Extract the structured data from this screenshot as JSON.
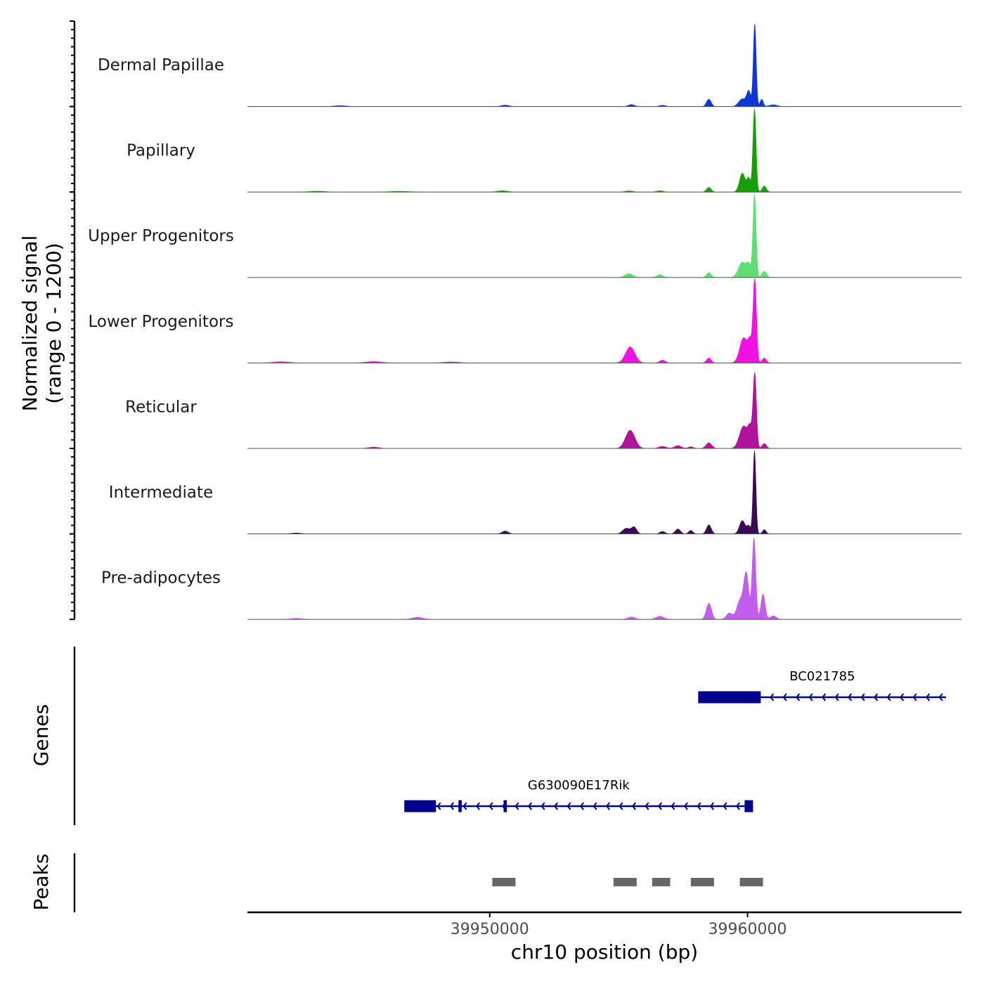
{
  "chart_data": {
    "type": "area",
    "title": "",
    "xlabel": "chr10 position (bp)",
    "ylabel_line1": "Normalized signal",
    "ylabel_line2": "(range 0 - 1200)",
    "ylim": [
      0,
      1200
    ],
    "xlim": [
      39940600,
      39968300
    ],
    "x_ticks": [
      39950000,
      39960000
    ],
    "x_tick_labels": [
      "39950000",
      "39960000"
    ],
    "tracks": [
      {
        "name": "Dermal Papillae",
        "color": "#0e36d9",
        "peaks": [
          {
            "center": 39944200,
            "sigma": 250,
            "height": 12
          },
          {
            "center": 39950600,
            "sigma": 150,
            "height": 20
          },
          {
            "center": 39955500,
            "sigma": 120,
            "height": 28
          },
          {
            "center": 39956700,
            "sigma": 120,
            "height": 18
          },
          {
            "center": 39958500,
            "sigma": 90,
            "height": 105
          },
          {
            "center": 39959800,
            "sigma": 140,
            "height": 110
          },
          {
            "center": 39960050,
            "sigma": 80,
            "height": 210
          },
          {
            "center": 39960280,
            "sigma": 55,
            "height": 1180
          },
          {
            "center": 39960550,
            "sigma": 60,
            "height": 105
          },
          {
            "center": 39961000,
            "sigma": 150,
            "height": 25
          }
        ]
      },
      {
        "name": "Papillary",
        "color": "#169f0a",
        "peaks": [
          {
            "center": 39943300,
            "sigma": 300,
            "height": 12
          },
          {
            "center": 39946500,
            "sigma": 400,
            "height": 10
          },
          {
            "center": 39950500,
            "sigma": 200,
            "height": 18
          },
          {
            "center": 39955400,
            "sigma": 150,
            "height": 16
          },
          {
            "center": 39956600,
            "sigma": 130,
            "height": 18
          },
          {
            "center": 39958500,
            "sigma": 90,
            "height": 65
          },
          {
            "center": 39959800,
            "sigma": 110,
            "height": 270
          },
          {
            "center": 39960050,
            "sigma": 70,
            "height": 190
          },
          {
            "center": 39960270,
            "sigma": 60,
            "height": 1190
          },
          {
            "center": 39960650,
            "sigma": 80,
            "height": 85
          }
        ]
      },
      {
        "name": "Upper Progenitors",
        "color": "#5fdf73",
        "peaks": [
          {
            "center": 39955400,
            "sigma": 150,
            "height": 55
          },
          {
            "center": 39956600,
            "sigma": 120,
            "height": 40
          },
          {
            "center": 39958500,
            "sigma": 90,
            "height": 70
          },
          {
            "center": 39959800,
            "sigma": 150,
            "height": 220
          },
          {
            "center": 39960050,
            "sigma": 80,
            "height": 160
          },
          {
            "center": 39960270,
            "sigma": 60,
            "height": 1190
          },
          {
            "center": 39960650,
            "sigma": 90,
            "height": 90
          }
        ]
      },
      {
        "name": "Lower Progenitors",
        "color": "#f012e5",
        "peaks": [
          {
            "center": 39941900,
            "sigma": 300,
            "height": 18
          },
          {
            "center": 39945500,
            "sigma": 300,
            "height": 20
          },
          {
            "center": 39948500,
            "sigma": 300,
            "height": 15
          },
          {
            "center": 39955450,
            "sigma": 180,
            "height": 230
          },
          {
            "center": 39956700,
            "sigma": 110,
            "height": 40
          },
          {
            "center": 39958500,
            "sigma": 90,
            "height": 70
          },
          {
            "center": 39959850,
            "sigma": 150,
            "height": 360
          },
          {
            "center": 39960100,
            "sigma": 80,
            "height": 260
          },
          {
            "center": 39960280,
            "sigma": 65,
            "height": 1190
          },
          {
            "center": 39960650,
            "sigma": 80,
            "height": 70
          }
        ]
      },
      {
        "name": "Reticular",
        "color": "#b0139c",
        "peaks": [
          {
            "center": 39945500,
            "sigma": 200,
            "height": 18
          },
          {
            "center": 39955450,
            "sigma": 180,
            "height": 260
          },
          {
            "center": 39956700,
            "sigma": 140,
            "height": 30
          },
          {
            "center": 39957300,
            "sigma": 130,
            "height": 40
          },
          {
            "center": 39957800,
            "sigma": 90,
            "height": 25
          },
          {
            "center": 39958500,
            "sigma": 110,
            "height": 80
          },
          {
            "center": 39959850,
            "sigma": 160,
            "height": 320
          },
          {
            "center": 39960100,
            "sigma": 80,
            "height": 240
          },
          {
            "center": 39960280,
            "sigma": 65,
            "height": 1060
          },
          {
            "center": 39960650,
            "sigma": 80,
            "height": 70
          }
        ]
      },
      {
        "name": "Intermediate",
        "color": "#3b0a57",
        "peaks": [
          {
            "center": 39942500,
            "sigma": 200,
            "height": 12
          },
          {
            "center": 39950600,
            "sigma": 120,
            "height": 40
          },
          {
            "center": 39955300,
            "sigma": 140,
            "height": 80
          },
          {
            "center": 39955600,
            "sigma": 100,
            "height": 95
          },
          {
            "center": 39956700,
            "sigma": 100,
            "height": 35
          },
          {
            "center": 39957300,
            "sigma": 100,
            "height": 70
          },
          {
            "center": 39957800,
            "sigma": 80,
            "height": 50
          },
          {
            "center": 39958500,
            "sigma": 90,
            "height": 130
          },
          {
            "center": 39959800,
            "sigma": 110,
            "height": 190
          },
          {
            "center": 39960050,
            "sigma": 70,
            "height": 110
          },
          {
            "center": 39960270,
            "sigma": 55,
            "height": 1190
          },
          {
            "center": 39960650,
            "sigma": 70,
            "height": 60
          }
        ]
      },
      {
        "name": "Pre-adipocytes",
        "color": "#c25eee",
        "peaks": [
          {
            "center": 39942500,
            "sigma": 200,
            "height": 15
          },
          {
            "center": 39947200,
            "sigma": 200,
            "height": 30
          },
          {
            "center": 39955500,
            "sigma": 140,
            "height": 35
          },
          {
            "center": 39956600,
            "sigma": 150,
            "height": 45
          },
          {
            "center": 39958500,
            "sigma": 100,
            "height": 230
          },
          {
            "center": 39959300,
            "sigma": 120,
            "height": 90
          },
          {
            "center": 39959700,
            "sigma": 120,
            "height": 260
          },
          {
            "center": 39959950,
            "sigma": 100,
            "height": 650
          },
          {
            "center": 39960250,
            "sigma": 70,
            "height": 1160
          },
          {
            "center": 39960600,
            "sigma": 80,
            "height": 360
          },
          {
            "center": 39961000,
            "sigma": 120,
            "height": 50
          }
        ]
      }
    ],
    "genes_label": "Genes",
    "genes": [
      {
        "name": "BC021785",
        "strand": "-",
        "start": 39958100,
        "end": 39967700,
        "exons": [
          [
            39958100,
            39960500
          ]
        ]
      },
      {
        "name": "G630090E17Rik",
        "strand": "-",
        "start": 39946700,
        "end": 39960200,
        "exons": [
          [
            39946700,
            39947900
          ],
          [
            39948800,
            39948900
          ],
          [
            39950550,
            39950650
          ],
          [
            39959900,
            39960200
          ]
        ]
      }
    ],
    "gene_color": "#00008b",
    "peaks_label": "Peaks",
    "peak_color": "#666666",
    "peak_regions": [
      [
        39950100,
        39951000
      ],
      [
        39954800,
        39955700
      ],
      [
        39956300,
        39957000
      ],
      [
        39957800,
        39958700
      ],
      [
        39959700,
        39960600
      ]
    ]
  }
}
